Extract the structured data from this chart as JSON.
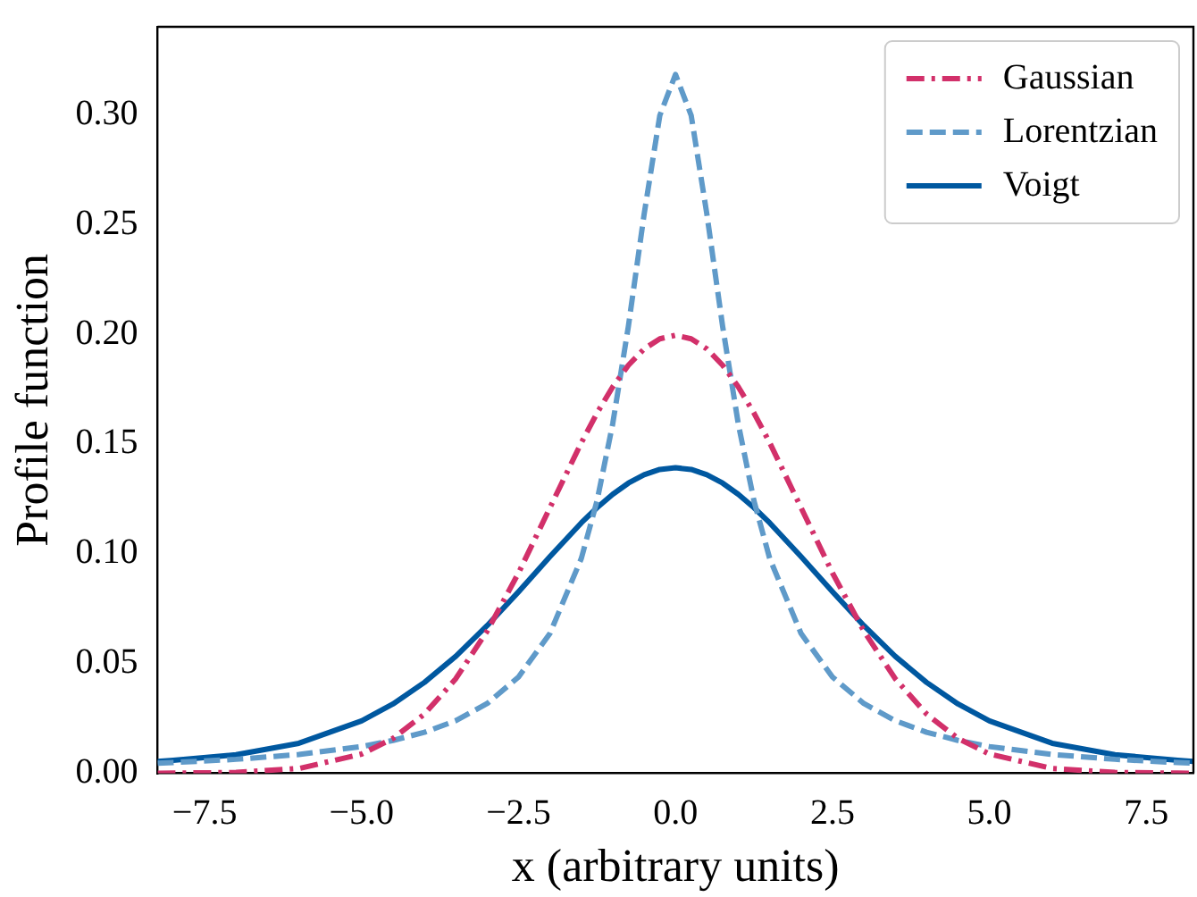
{
  "chart_data": {
    "type": "line",
    "xlabel": "x (arbitrary units)",
    "ylabel": "Profile function",
    "x": [
      -8.25,
      -8,
      -7,
      -6,
      -5,
      -4.5,
      -4,
      -3.5,
      -3,
      -2.5,
      -2,
      -1.5,
      -1.25,
      -1,
      -0.75,
      -0.5,
      -0.25,
      0,
      0.25,
      0.5,
      0.75,
      1,
      1.25,
      1.5,
      2,
      2.5,
      3,
      3.5,
      4,
      4.5,
      5,
      6,
      7,
      8,
      8.25
    ],
    "series": [
      {
        "name": "Gaussian",
        "color": "#d2306a",
        "line_style": "dashdot",
        "values": [
          0,
          0.0001,
          0.0004,
          0.0022,
          0.0088,
          0.0159,
          0.027,
          0.0431,
          0.0648,
          0.0913,
          0.121,
          0.1506,
          0.1641,
          0.176,
          0.1859,
          0.1933,
          0.1979,
          0.1995,
          0.1979,
          0.1933,
          0.1859,
          0.176,
          0.1641,
          0.1506,
          0.121,
          0.0913,
          0.0648,
          0.0431,
          0.027,
          0.0159,
          0.0088,
          0.0022,
          0.0004,
          0.0001,
          0
        ]
      },
      {
        "name": "Lorentzian",
        "color": "#5f9ac9",
        "line_style": "dashed",
        "values": [
          0.0046,
          0.0049,
          0.0064,
          0.0086,
          0.0122,
          0.015,
          0.0187,
          0.024,
          0.0318,
          0.0439,
          0.0637,
          0.0979,
          0.1241,
          0.1592,
          0.2037,
          0.2546,
          0.2996,
          0.3183,
          0.2996,
          0.2546,
          0.2037,
          0.1592,
          0.1241,
          0.0979,
          0.0637,
          0.0439,
          0.0318,
          0.024,
          0.0187,
          0.015,
          0.0122,
          0.0086,
          0.0064,
          0.0049,
          0.0046
        ]
      },
      {
        "name": "Voigt",
        "color": "#0058a0",
        "line_style": "solid",
        "values": [
          0.0054,
          0.0059,
          0.0085,
          0.0137,
          0.0239,
          0.0316,
          0.0414,
          0.0533,
          0.0673,
          0.0827,
          0.0987,
          0.1141,
          0.121,
          0.1271,
          0.1322,
          0.136,
          0.1384,
          0.1392,
          0.1384,
          0.136,
          0.1322,
          0.1271,
          0.121,
          0.1141,
          0.0987,
          0.0827,
          0.0673,
          0.0533,
          0.0414,
          0.0316,
          0.0239,
          0.0137,
          0.0085,
          0.0059,
          0.0054
        ]
      }
    ],
    "xlim": [
      -8.25,
      8.25
    ],
    "xticks": [
      {
        "value": -7.5,
        "label": "−7.5"
      },
      {
        "value": -5,
        "label": "−5.0"
      },
      {
        "value": -2.5,
        "label": "−2.5"
      },
      {
        "value": 0,
        "label": "0.0"
      },
      {
        "value": 2.5,
        "label": "2.5"
      },
      {
        "value": 5,
        "label": "5.0"
      },
      {
        "value": 7.5,
        "label": "7.5"
      }
    ],
    "ylim": [
      0,
      0.34
    ],
    "yticks": [
      {
        "value": 0,
        "label": "0.00"
      },
      {
        "value": 0.05,
        "label": "0.05"
      },
      {
        "value": 0.1,
        "label": "0.10"
      },
      {
        "value": 0.15,
        "label": "0.15"
      },
      {
        "value": 0.2,
        "label": "0.20"
      },
      {
        "value": 0.25,
        "label": "0.25"
      },
      {
        "value": 0.3,
        "label": "0.30"
      }
    ],
    "grid": false,
    "legend": "top right",
    "marker": "none"
  }
}
